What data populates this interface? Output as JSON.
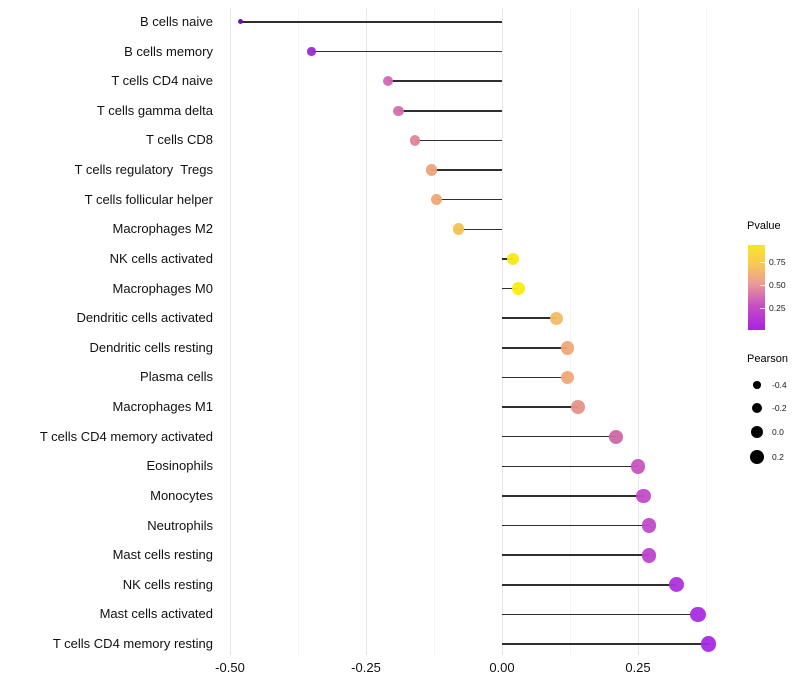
{
  "chart_data": {
    "type": "lollipop",
    "title": "",
    "xlabel": "",
    "ylabel": "",
    "xlim": [
      -0.54,
      0.4
    ],
    "x_axis": {
      "tick_labels": [
        "-0.50",
        "-0.25",
        "0.00",
        "0.25"
      ],
      "tick_values": [
        -0.5,
        -0.25,
        0.0,
        0.25
      ],
      "minor_tick_values": [
        -0.375,
        -0.125,
        0.125,
        0.375
      ]
    },
    "grid": "vertical-only",
    "points": [
      {
        "label": "B cells naive",
        "pearson": -0.48,
        "color": "#6A0AA6"
      },
      {
        "label": "B cells memory",
        "pearson": -0.35,
        "color": "#9C2BD3"
      },
      {
        "label": "T cells CD4 naive",
        "pearson": -0.21,
        "color": "#D168B5"
      },
      {
        "label": "T cells gamma delta",
        "pearson": -0.19,
        "color": "#D36FAE"
      },
      {
        "label": "T cells CD8",
        "pearson": -0.16,
        "color": "#DE8596"
      },
      {
        "label": "T cells regulatory  Tregs",
        "pearson": -0.13,
        "color": "#ECA47B"
      },
      {
        "label": "T cells follicular helper",
        "pearson": -0.12,
        "color": "#EFA671"
      },
      {
        "label": "Macrophages M2",
        "pearson": -0.08,
        "color": "#F2C351"
      },
      {
        "label": "NK cells activated",
        "pearson": 0.02,
        "color": "#F9E814"
      },
      {
        "label": "Macrophages M0",
        "pearson": 0.03,
        "color": "#FAEC0E"
      },
      {
        "label": "Dendritic cells activated",
        "pearson": 0.1,
        "color": "#F4BA67"
      },
      {
        "label": "Dendritic cells resting",
        "pearson": 0.12,
        "color": "#F0A877"
      },
      {
        "label": "Plasma cells",
        "pearson": 0.12,
        "color": "#F0A877"
      },
      {
        "label": "Macrophages M1",
        "pearson": 0.14,
        "color": "#E59288"
      },
      {
        "label": "T cells CD4 memory activated",
        "pearson": 0.21,
        "color": "#CD67A5"
      },
      {
        "label": "Eosinophils",
        "pearson": 0.25,
        "color": "#C754BE"
      },
      {
        "label": "Monocytes",
        "pearson": 0.26,
        "color": "#C14DC7"
      },
      {
        "label": "Neutrophils",
        "pearson": 0.27,
        "color": "#C04BC8"
      },
      {
        "label": "Mast cells resting",
        "pearson": 0.27,
        "color": "#BD46CE"
      },
      {
        "label": "NK cells resting",
        "pearson": 0.32,
        "color": "#AE33DC"
      },
      {
        "label": "Mast cells activated",
        "pearson": 0.36,
        "color": "#A92EE1"
      },
      {
        "label": "T cells CD4 memory resting",
        "pearson": 0.38,
        "color": "#A62BE3"
      }
    ],
    "legend_pvalue": {
      "title": "Pvalue",
      "position": "right",
      "tick_labels": [
        "0.75",
        "0.50",
        "0.25"
      ],
      "gradient_bottom_to_top": [
        "#A623E2",
        "#C54DC4",
        "#EC9C96",
        "#F9CB4E",
        "#F5E726"
      ]
    },
    "legend_pearson": {
      "title": "Pearson",
      "position": "right",
      "entries": [
        {
          "label": "-0.4",
          "value": -0.4
        },
        {
          "label": "-0.2",
          "value": -0.2
        },
        {
          "label": "0.0",
          "value": 0.0
        },
        {
          "label": "0.2",
          "value": 0.2
        }
      ]
    },
    "stem_color": "#2e2e2e",
    "background": "#ffffff"
  }
}
